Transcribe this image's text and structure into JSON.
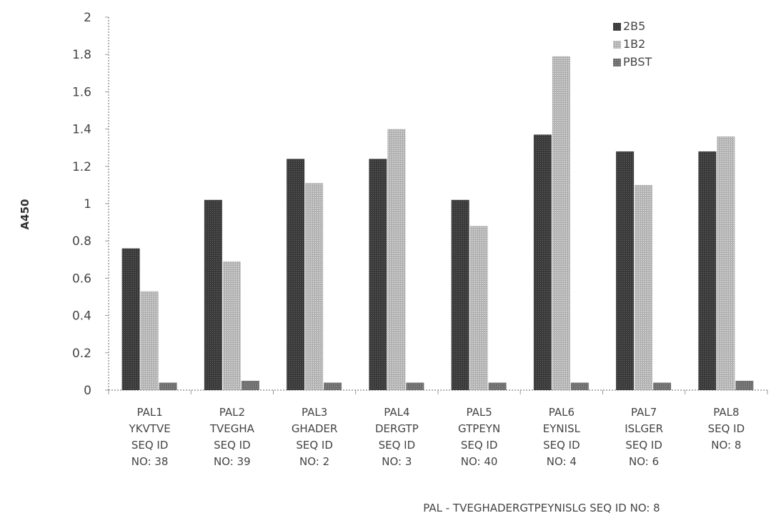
{
  "chart_data": {
    "type": "bar",
    "title": "",
    "xlabel": "",
    "ylabel": "A450",
    "ylim": [
      0,
      2
    ],
    "yticks": [
      "0",
      "0.2",
      "0.4",
      "0.6",
      "0.8",
      "1",
      "1.2",
      "1.4",
      "1.6",
      "1.8",
      "2"
    ],
    "grid": false,
    "legend_position": "top-right",
    "categories": [
      {
        "lines": [
          "PAL1",
          "YKVTVE",
          "SEQ ID",
          "NO: 38"
        ]
      },
      {
        "lines": [
          "PAL2",
          "TVEGHA",
          "SEQ ID",
          "NO: 39"
        ]
      },
      {
        "lines": [
          "PAL3",
          "GHADER",
          "SEQ ID",
          "NO: 2"
        ]
      },
      {
        "lines": [
          "PAL4",
          "DERGTP",
          "SEQ ID",
          "NO: 3"
        ]
      },
      {
        "lines": [
          "PAL5",
          "GTPEYN",
          "SEQ ID",
          "NO: 40"
        ]
      },
      {
        "lines": [
          "PAL6",
          "EYNISL",
          "SEQ ID",
          "NO: 4"
        ]
      },
      {
        "lines": [
          "PAL7",
          "ISLGER",
          "SEQ ID",
          "NO: 6"
        ]
      },
      {
        "lines": [
          "PAL8",
          "SEQ ID",
          "NO: 8"
        ]
      }
    ],
    "series": [
      {
        "name": "2B5",
        "color": "#3a3a3a",
        "values": [
          0.76,
          1.02,
          1.24,
          1.24,
          1.02,
          1.37,
          1.28,
          1.28
        ]
      },
      {
        "name": "1B2",
        "color": "#b8b8b8",
        "values": [
          0.53,
          0.69,
          1.11,
          1.4,
          0.88,
          1.79,
          1.1,
          1.36
        ]
      },
      {
        "name": "PBST",
        "color": "#6e6e6e",
        "values": [
          0.04,
          0.05,
          0.04,
          0.04,
          0.04,
          0.04,
          0.04,
          0.05
        ]
      }
    ],
    "caption": "PAL - TVEGHADERGTPEYNISLG   SEQ ID NO: 8"
  }
}
